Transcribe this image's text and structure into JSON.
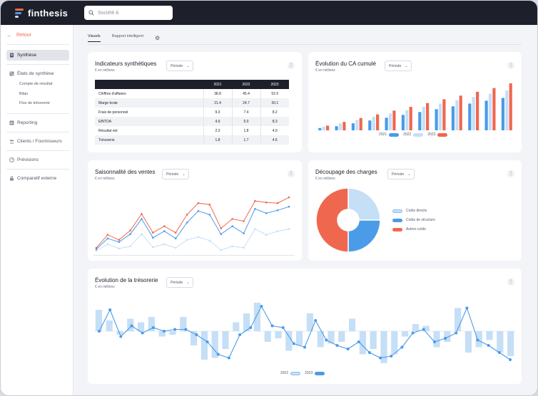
{
  "app": {
    "name": "finthesis",
    "search_value": "Société A"
  },
  "colors": {
    "dark": "#1d1f2b",
    "accent": "#f0674f",
    "blue": "#4a9be8",
    "lightblue": "#c5dff7"
  },
  "sidebar": {
    "back_label": "Retour",
    "items": [
      {
        "label": "Synthèse",
        "icon": "document-icon"
      },
      {
        "label": "États de synthèse",
        "icon": "grid-icon"
      },
      {
        "label": "Reporting",
        "icon": "chart-icon"
      },
      {
        "label": "Clients / Fournisseurs",
        "icon": "users-icon"
      },
      {
        "label": "Prévisions",
        "icon": "gauge-icon"
      },
      {
        "label": "Comparatif externe",
        "icon": "lock-icon"
      }
    ],
    "subitems": [
      "Compte de résultat",
      "Bilan",
      "Flux de trésorerie"
    ]
  },
  "tabs": [
    {
      "label": "Visuels"
    },
    {
      "label": "Rapport intelligent"
    }
  ],
  "cards": {
    "indicators": {
      "title": "Indicateurs synthétiques",
      "unit": "€ en millions",
      "period": "Période"
    },
    "ca": {
      "title": "Évolution du CA cumulé",
      "unit": "€ en millions",
      "period": "Période"
    },
    "saison": {
      "title": "Saisonnalité des ventes",
      "unit": "€ en millions",
      "period": "Période"
    },
    "charges": {
      "title": "Découpage des charges",
      "unit": "€ en millions",
      "period": "Période"
    },
    "treso": {
      "title": "Évolution de la trésorerie",
      "unit": "€ en millions",
      "period": "Période"
    }
  },
  "indicators_table": {
    "headers": [
      "",
      "2021",
      "2022",
      "2023"
    ],
    "rows": [
      [
        "Chiffres d'affaires",
        "38.8",
        "45.4",
        "52.5"
      ],
      [
        "Marge brute",
        "21.4",
        "24.7",
        "30.1"
      ],
      [
        "Frais de personnel",
        "9.3",
        "7.4",
        "8.2"
      ],
      [
        "EBITDA",
        "4.9",
        "5.0",
        "8.3"
      ],
      [
        "Résultat net",
        "2.3",
        "1.8",
        "4.9"
      ],
      [
        "Trésorerie",
        "1.8",
        "1.7",
        "4.6"
      ]
    ]
  },
  "chart_data": [
    {
      "id": "ca_cumule",
      "type": "bar",
      "series": [
        {
          "name": "2021",
          "color": "#4a9be8",
          "values": [
            5,
            9,
            15,
            21,
            27,
            33,
            39,
            45,
            51,
            57,
            63,
            69
          ]
        },
        {
          "name": "2022",
          "color": "#c5dff7",
          "values": [
            8,
            15,
            22,
            29,
            36,
            43,
            50,
            57,
            64,
            71,
            78,
            85
          ]
        },
        {
          "name": "2023",
          "color": "#f0674f",
          "values": [
            10,
            18,
            26,
            34,
            42,
            50,
            58,
            66,
            74,
            82,
            90,
            100
          ]
        }
      ],
      "ylim": [
        0,
        100
      ]
    },
    {
      "id": "saisonnalite",
      "type": "line",
      "series": [
        {
          "name": "2021",
          "color": "#c5dff7",
          "values": [
            3,
            12,
            6,
            9,
            26,
            8,
            12,
            7,
            18,
            22,
            17,
            4,
            9,
            7,
            33,
            25,
            30,
            33
          ]
        },
        {
          "name": "2022",
          "color": "#4a9be8",
          "values": [
            5,
            20,
            15,
            26,
            47,
            21,
            30,
            20,
            42,
            58,
            53,
            26,
            37,
            27,
            61,
            55,
            59,
            64
          ]
        },
        {
          "name": "2023",
          "color": "#f0674f",
          "values": [
            7,
            25,
            18,
            31,
            54,
            28,
            37,
            28,
            53,
            69,
            67,
            34,
            47,
            44,
            72,
            70,
            69,
            77
          ]
        }
      ],
      "ylim": [
        0,
        85
      ]
    },
    {
      "id": "charges",
      "type": "pie",
      "labels": [
        "Coûts directs",
        "Coûts de structure",
        "Autres coûts"
      ],
      "values": [
        25,
        25,
        50
      ],
      "colors": [
        "#c5dff7",
        "#4a9be8",
        "#f0674f"
      ]
    },
    {
      "id": "tresorerie",
      "type": "bar",
      "bars": [
        12,
        6,
        -2,
        7,
        5,
        8,
        -3,
        -2,
        8,
        -8,
        -16,
        -15,
        -10,
        5,
        10,
        16,
        -6,
        -4,
        -11,
        -8,
        10,
        -9,
        -7,
        -6,
        7,
        -13,
        -10,
        -18,
        -13,
        -3,
        4,
        3,
        -9,
        -6,
        13,
        -12,
        -9,
        -5,
        -12,
        -14
      ],
      "line": [
        0,
        12,
        -3,
        3,
        -1,
        2,
        0,
        1,
        1,
        -2,
        -6,
        -13,
        -15,
        -2,
        2,
        14,
        3,
        2,
        -7,
        -9,
        6,
        -5,
        -8,
        -10,
        -6,
        -12,
        -15,
        -14,
        -9,
        -1,
        1,
        -6,
        -4,
        -1,
        13,
        -5,
        -8,
        -12,
        -16
      ],
      "series_names": [
        "2022",
        "2023"
      ],
      "colors": [
        "#c5dff7",
        "#4a9be8"
      ],
      "ylim": [
        -20,
        20
      ]
    }
  ]
}
